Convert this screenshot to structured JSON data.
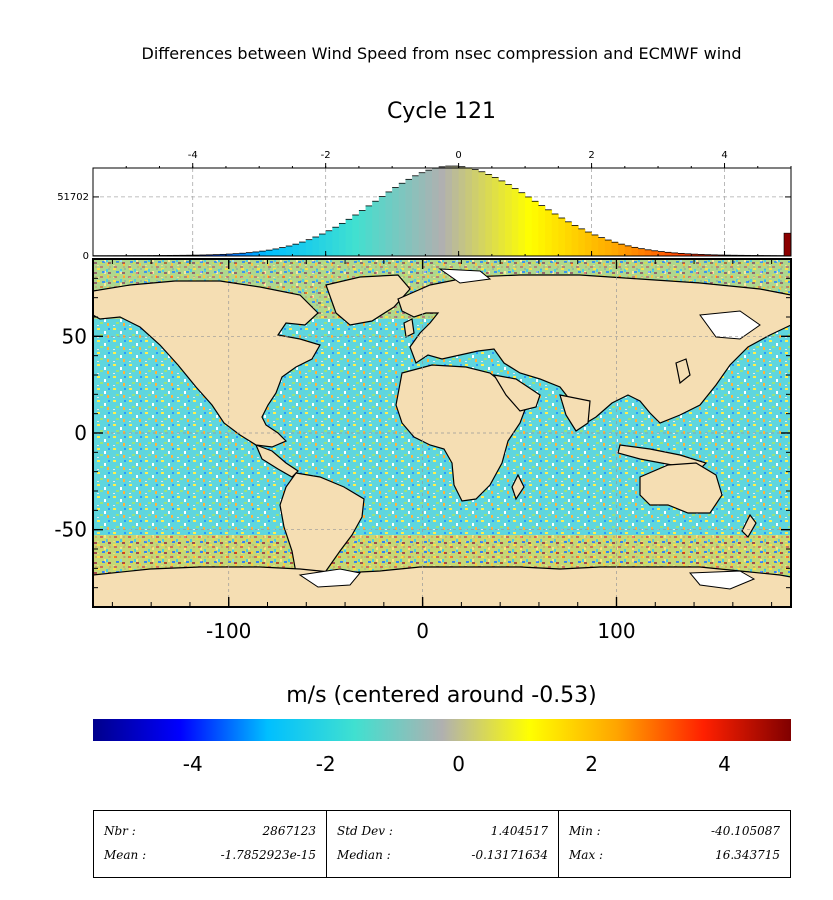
{
  "title": "Differences between Wind Speed from nsec compression and ECMWF wind",
  "subtitle": "Cycle 121",
  "chart_data": [
    {
      "type": "histogram",
      "xlim": [
        -5.5,
        5.0
      ],
      "ylim": [
        0,
        77000
      ],
      "xticks": [
        "-4",
        "-2",
        "0",
        "2",
        "4"
      ],
      "xtick_values": [
        -4,
        -2,
        0,
        2,
        4
      ],
      "yticks": [
        "0",
        "51702"
      ],
      "ytick_values": [
        0,
        51702
      ],
      "grid": true,
      "bin_width": 0.1,
      "peak_x": -0.1,
      "peak_count": 77000,
      "overflow_bar": {
        "x": 5.0,
        "count": 20000
      }
    },
    {
      "type": "heatmap",
      "xlim": [
        -170,
        190
      ],
      "ylim": [
        -90,
        90
      ],
      "xticks": [
        "-100",
        "0",
        "100"
      ],
      "xtick_values": [
        -100,
        0,
        100
      ],
      "yticks": [
        "50",
        "0",
        "-50"
      ],
      "ytick_values": [
        50,
        0,
        -50
      ],
      "grid": true,
      "land_color": "#f5deb3",
      "ocean_missing_color": "#ffffff"
    }
  ],
  "colorbar": {
    "title": "m/s (centered around -0.53)",
    "tick_labels": [
      "-4",
      "-2",
      "0",
      "2",
      "4"
    ],
    "tick_values": [
      -4,
      -2,
      0,
      2,
      4
    ],
    "range": [
      -5.5,
      5.0
    ],
    "colors": [
      "#00008b",
      "#0000ff",
      "#00bfff",
      "#40e0d0",
      "#b0b0b0",
      "#ffff00",
      "#ffa500",
      "#ff2000",
      "#800000"
    ]
  },
  "stats": [
    {
      "label1": "Nbr :",
      "value1": "2867123",
      "label2": "Mean :",
      "value2": "-1.7852923e-15"
    },
    {
      "label1": "Std Dev :",
      "value1": "1.404517",
      "label2": "Median :",
      "value2": "-0.13171634"
    },
    {
      "label1": "Min :",
      "value1": "-40.105087",
      "label2": "Max :",
      "value2": "16.343715"
    }
  ]
}
